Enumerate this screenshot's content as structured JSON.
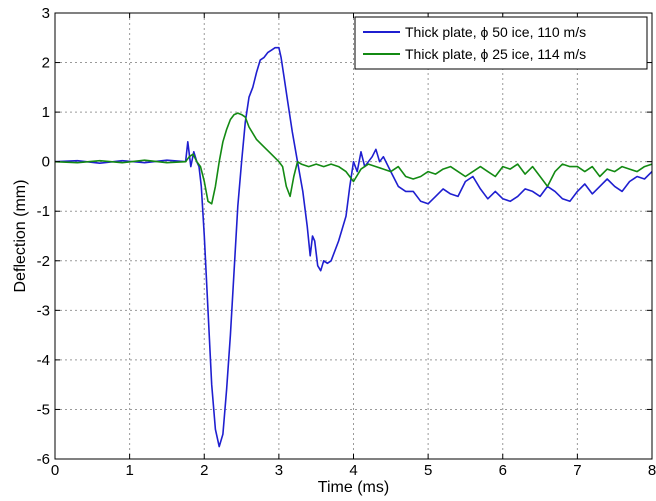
{
  "chart_data": {
    "type": "line",
    "xlabel": "Time (ms)",
    "ylabel": "Deflection (mm)",
    "xlim": [
      0,
      8
    ],
    "ylim": [
      -6,
      3
    ],
    "xticks": [
      "0",
      "1",
      "2",
      "3",
      "4",
      "5",
      "6",
      "7",
      "8"
    ],
    "yticks": [
      "3",
      "2",
      "1",
      "0",
      "-1",
      "-2",
      "-3",
      "-4",
      "-5",
      "-6"
    ],
    "grid": true,
    "legend_position": "top-right",
    "series": [
      {
        "name": "Thick plate,  ϕ 50 ice, 110 m/s",
        "color": "#1f1fd0",
        "x": [
          0,
          0.3,
          0.6,
          0.9,
          1.2,
          1.5,
          1.75,
          1.78,
          1.82,
          1.86,
          1.9,
          1.93,
          1.96,
          2.0,
          2.05,
          2.1,
          2.15,
          2.2,
          2.25,
          2.3,
          2.35,
          2.4,
          2.45,
          2.5,
          2.55,
          2.6,
          2.65,
          2.7,
          2.75,
          2.8,
          2.85,
          2.9,
          2.95,
          3.0,
          3.03,
          3.07,
          3.12,
          3.18,
          3.25,
          3.32,
          3.38,
          3.42,
          3.45,
          3.48,
          3.52,
          3.56,
          3.6,
          3.65,
          3.7,
          3.8,
          3.9,
          3.95,
          4.0,
          4.05,
          4.1,
          4.15,
          4.2,
          4.25,
          4.3,
          4.35,
          4.4,
          4.5,
          4.6,
          4.7,
          4.8,
          4.9,
          5.0,
          5.1,
          5.2,
          5.3,
          5.4,
          5.5,
          5.6,
          5.7,
          5.8,
          5.9,
          6.0,
          6.1,
          6.2,
          6.3,
          6.4,
          6.5,
          6.6,
          6.7,
          6.8,
          6.9,
          7.0,
          7.1,
          7.2,
          7.3,
          7.4,
          7.5,
          7.6,
          7.7,
          7.8,
          7.9,
          8.0
        ],
        "y": [
          0.0,
          0.02,
          -0.03,
          0.02,
          -0.02,
          0.03,
          0.0,
          0.4,
          -0.1,
          0.2,
          0.0,
          -0.1,
          -0.5,
          -1.5,
          -3.0,
          -4.5,
          -5.4,
          -5.75,
          -5.5,
          -4.6,
          -3.5,
          -2.2,
          -0.9,
          0.0,
          0.8,
          1.3,
          1.5,
          1.8,
          2.05,
          2.1,
          2.2,
          2.25,
          2.3,
          2.3,
          2.1,
          1.7,
          1.2,
          0.6,
          0.0,
          -0.6,
          -1.3,
          -1.9,
          -1.5,
          -1.6,
          -2.1,
          -2.2,
          -2.0,
          -2.05,
          -2.0,
          -1.6,
          -1.1,
          -0.5,
          0.0,
          -0.2,
          0.2,
          -0.1,
          0.0,
          0.1,
          0.25,
          0.0,
          0.1,
          -0.2,
          -0.5,
          -0.6,
          -0.6,
          -0.8,
          -0.85,
          -0.7,
          -0.55,
          -0.65,
          -0.7,
          -0.4,
          -0.3,
          -0.55,
          -0.75,
          -0.6,
          -0.75,
          -0.8,
          -0.7,
          -0.55,
          -0.6,
          -0.7,
          -0.5,
          -0.6,
          -0.75,
          -0.8,
          -0.6,
          -0.45,
          -0.65,
          -0.5,
          -0.35,
          -0.5,
          -0.6,
          -0.4,
          -0.3,
          -0.35,
          -0.2
        ]
      },
      {
        "name": "Thick plate,  ϕ 25 ice, 114 m/s",
        "color": "#138a13",
        "x": [
          0,
          0.3,
          0.6,
          0.9,
          1.2,
          1.5,
          1.75,
          1.8,
          1.85,
          1.9,
          1.95,
          2.0,
          2.05,
          2.1,
          2.15,
          2.2,
          2.25,
          2.3,
          2.35,
          2.4,
          2.45,
          2.5,
          2.55,
          2.6,
          2.7,
          2.8,
          2.9,
          3.0,
          3.05,
          3.1,
          3.15,
          3.2,
          3.25,
          3.3,
          3.4,
          3.5,
          3.6,
          3.7,
          3.8,
          3.9,
          4.0,
          4.1,
          4.2,
          4.3,
          4.4,
          4.5,
          4.6,
          4.7,
          4.8,
          4.9,
          5.0,
          5.1,
          5.2,
          5.3,
          5.4,
          5.5,
          5.6,
          5.7,
          5.8,
          5.9,
          6.0,
          6.1,
          6.2,
          6.3,
          6.4,
          6.5,
          6.6,
          6.7,
          6.8,
          6.9,
          7.0,
          7.1,
          7.2,
          7.3,
          7.4,
          7.5,
          7.6,
          7.7,
          7.8,
          7.9,
          8.0
        ],
        "y": [
          0.0,
          -0.02,
          0.02,
          -0.02,
          0.03,
          -0.02,
          0.0,
          0.1,
          0.15,
          0.0,
          -0.1,
          -0.4,
          -0.8,
          -0.85,
          -0.5,
          0.0,
          0.4,
          0.65,
          0.85,
          0.95,
          0.98,
          0.95,
          0.9,
          0.7,
          0.45,
          0.3,
          0.15,
          0.0,
          -0.1,
          -0.5,
          -0.7,
          -0.3,
          0.0,
          -0.05,
          -0.1,
          -0.05,
          -0.1,
          -0.05,
          -0.1,
          -0.2,
          -0.4,
          -0.15,
          -0.05,
          -0.1,
          -0.15,
          -0.2,
          -0.1,
          -0.3,
          -0.35,
          -0.3,
          -0.2,
          -0.25,
          -0.15,
          -0.1,
          -0.2,
          -0.3,
          -0.2,
          -0.1,
          -0.2,
          -0.3,
          -0.1,
          -0.15,
          -0.05,
          -0.25,
          -0.1,
          -0.3,
          -0.5,
          -0.2,
          -0.05,
          -0.1,
          -0.1,
          -0.2,
          -0.1,
          -0.3,
          -0.15,
          -0.2,
          -0.1,
          -0.15,
          -0.2,
          -0.1,
          -0.05
        ]
      }
    ]
  }
}
